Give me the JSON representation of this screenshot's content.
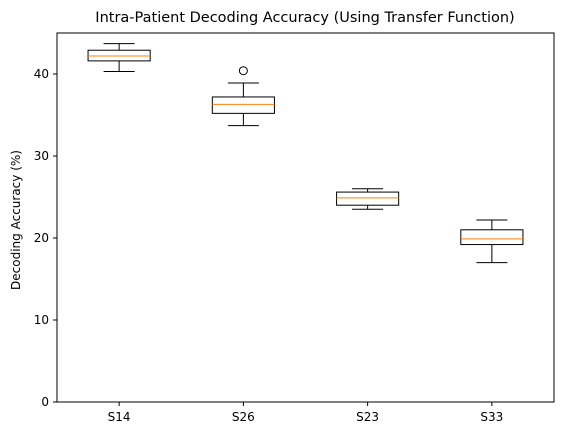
{
  "chart_data": {
    "type": "box",
    "title": "Intra-Patient Decoding Accuracy (Using Transfer Function)",
    "xlabel": "",
    "ylabel": "Decoding Accuracy (%)",
    "categories": [
      "S14",
      "S26",
      "S23",
      "S33"
    ],
    "boxes": [
      {
        "category": "S14",
        "whisker_low": 40.3,
        "q1": 41.6,
        "median": 42.2,
        "q3": 42.9,
        "whisker_high": 43.7,
        "outliers": []
      },
      {
        "category": "S26",
        "whisker_low": 33.7,
        "q1": 35.2,
        "median": 36.3,
        "q3": 37.2,
        "whisker_high": 38.9,
        "outliers": [
          40.4
        ]
      },
      {
        "category": "S23",
        "whisker_low": 23.5,
        "q1": 24.0,
        "median": 24.9,
        "q3": 25.6,
        "whisker_high": 26.0,
        "outliers": []
      },
      {
        "category": "S33",
        "whisker_low": 17.0,
        "q1": 19.2,
        "median": 19.9,
        "q3": 21.0,
        "whisker_high": 22.2,
        "outliers": []
      }
    ],
    "y_ticks": [
      0,
      10,
      20,
      30,
      40
    ],
    "ylim": [
      0,
      45
    ],
    "grid": false,
    "colors": {
      "box": "#000000",
      "median": "#ff7f0e",
      "outlier": "#000000"
    }
  }
}
